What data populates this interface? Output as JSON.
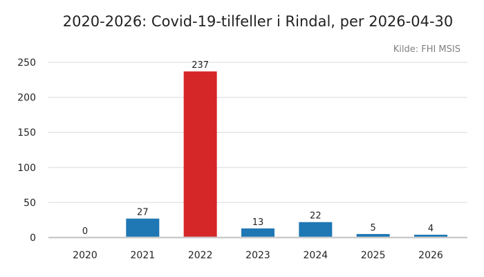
{
  "chart_data": {
    "type": "bar",
    "title": "2020-2026: Covid-19-tilfeller i Rindal, per 2026-04-30",
    "source": "Kilde: FHI MSIS",
    "categories": [
      "2020",
      "2021",
      "2022",
      "2023",
      "2024",
      "2025",
      "2026"
    ],
    "values": [
      0,
      27,
      237,
      13,
      22,
      5,
      4
    ],
    "data_labels": [
      "0",
      "27",
      "237",
      "13",
      "22",
      "5",
      "4"
    ],
    "highlight_index": 2,
    "colors": {
      "default": "#1f77b4",
      "highlight": "#d62728",
      "grid": "#e6e6e6",
      "axis": "#cccccc"
    },
    "xlabel": "",
    "ylabel": "",
    "ylim": [
      0,
      250
    ],
    "yticks": [
      0,
      50,
      100,
      150,
      200,
      250
    ],
    "grid": true,
    "legend": false
  }
}
